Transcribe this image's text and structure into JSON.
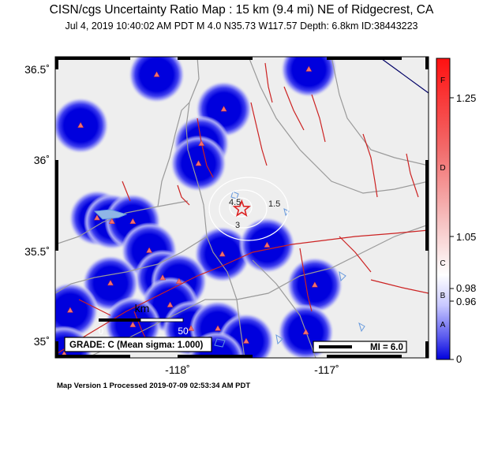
{
  "header": {
    "title": "CISN/cgs Uncertainty Ratio Map : 15 km (9.4 mi) NE of Ridgecrest, CA",
    "subtitle": "Jul  4, 2019 10:40:02 AM PDT    M 4.0    N35.73 W117.57    Depth: 6.8km    ID:38443223"
  },
  "axes": {
    "lat_labels": [
      "36.5˚",
      "36˚",
      "35.5˚",
      "35˚"
    ],
    "lon_labels": [
      "-118˚",
      "-117˚"
    ]
  },
  "contours": {
    "labels": [
      "4.5",
      "3",
      "1.5"
    ]
  },
  "scale_bar": {
    "unit": "km",
    "start": "0",
    "end": "50"
  },
  "grade_box": {
    "text": "GRADE: C (Mean sigma: 1.000)"
  },
  "mi_box": {
    "text": "MI = 6.0"
  },
  "colorbar": {
    "letters": [
      "F",
      "D",
      "C",
      "B",
      "A"
    ],
    "values": [
      "1.25",
      "1.05",
      "0.98",
      "0.96",
      "0"
    ]
  },
  "footer": {
    "text": "Map Version 1 Processed 2019-07-09 02:53:34 AM PDT"
  },
  "colors": {
    "station_circle": "#0000dd",
    "fault": "#cc2222",
    "road": "#999999",
    "water": "#6699dd",
    "epicenter": "#dd2222"
  },
  "stations": [
    {
      "lat": 36.47,
      "lon": -118.14
    },
    {
      "lat": 36.5,
      "lon": -117.12
    },
    {
      "lat": 36.28,
      "lon": -117.69
    },
    {
      "lat": 36.19,
      "lon": -118.65
    },
    {
      "lat": 36.09,
      "lon": -117.84
    },
    {
      "lat": 35.98,
      "lon": -117.86
    },
    {
      "lat": 35.68,
      "lon": -118.54
    },
    {
      "lat": 35.66,
      "lon": -118.44
    },
    {
      "lat": 35.66,
      "lon": -118.3
    },
    {
      "lat": 35.5,
      "lon": -118.19
    },
    {
      "lat": 35.48,
      "lon": -117.7
    },
    {
      "lat": 35.53,
      "lon": -117.4
    },
    {
      "lat": 35.35,
      "lon": -118.1
    },
    {
      "lat": 35.32,
      "lon": -118.45
    },
    {
      "lat": 35.33,
      "lon": -117.99
    },
    {
      "lat": 35.31,
      "lon": -117.08
    },
    {
      "lat": 35.2,
      "lon": -118.05
    },
    {
      "lat": 35.17,
      "lon": -118.72
    },
    {
      "lat": 35.09,
      "lon": -118.3
    },
    {
      "lat": 35.07,
      "lon": -117.91
    },
    {
      "lat": 35.07,
      "lon": -117.73
    },
    {
      "lat": 35.05,
      "lon": -117.14
    },
    {
      "lat": 35.0,
      "lon": -117.54
    },
    {
      "lat": 34.93,
      "lon": -118.76
    },
    {
      "lat": 34.9,
      "lon": -117.74
    }
  ],
  "epicenter": {
    "lat": 35.73,
    "lon": -117.57
  }
}
